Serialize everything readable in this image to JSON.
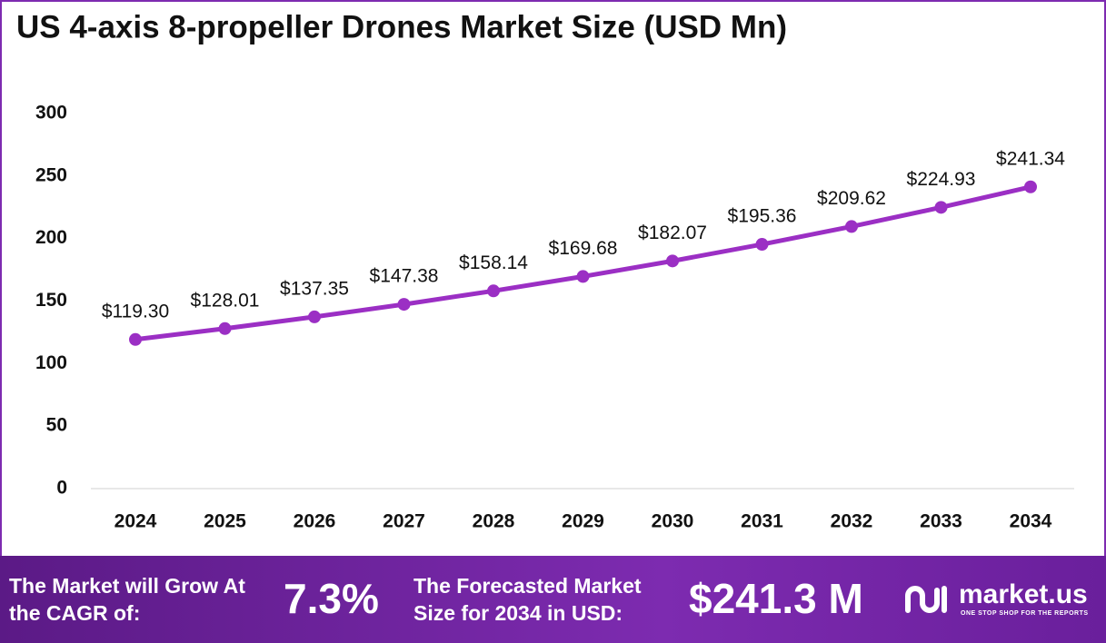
{
  "chart_data": {
    "type": "line",
    "title": "US 4-axis 8-propeller Drones Market Size (USD Mn)",
    "categories": [
      "2024",
      "2025",
      "2026",
      "2027",
      "2028",
      "2029",
      "2030",
      "2031",
      "2032",
      "2033",
      "2034"
    ],
    "values": [
      119.3,
      128.01,
      137.35,
      147.38,
      158.14,
      169.68,
      182.07,
      195.36,
      209.62,
      224.93,
      241.34
    ],
    "value_labels": [
      "$119.30",
      "$128.01",
      "$137.35",
      "$147.38",
      "$158.14",
      "$169.68",
      "$182.07",
      "$195.36",
      "$209.62",
      "$224.93",
      "$241.34"
    ],
    "color": "#9b2fc4",
    "ylim": [
      0,
      300
    ],
    "yticks": [
      0,
      50,
      100,
      150,
      200,
      250,
      300
    ],
    "grid": false
  },
  "footer": {
    "cagr_text": "The Market will Grow At the CAGR of:",
    "cagr": "7.3%",
    "forecast_text": "The Forecasted Market Size for 2034 in USD:",
    "forecast": "$241.3 M",
    "brand": "market.us",
    "tagline": "ONE STOP SHOP FOR THE REPORTS"
  }
}
